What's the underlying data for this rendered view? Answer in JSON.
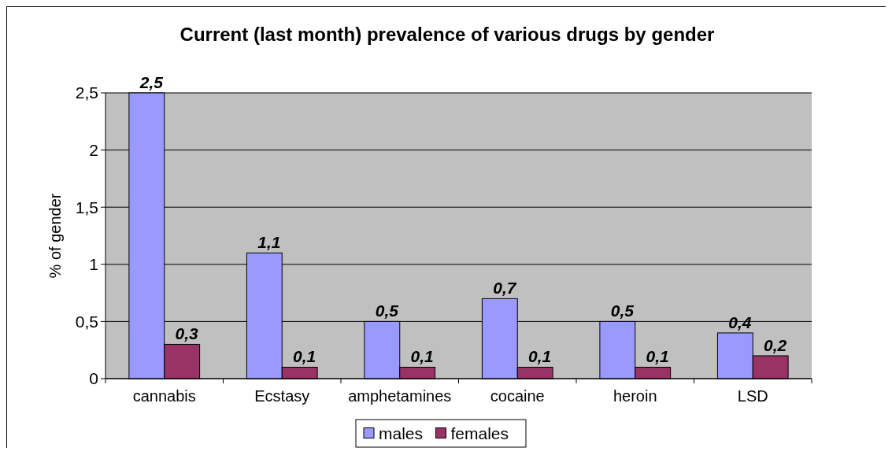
{
  "chart_data": {
    "type": "bar",
    "title": "Current (last month) prevalence of various drugs by gender",
    "ylabel": "% of gender",
    "categories": [
      "cannabis",
      "Ecstasy",
      "amphetamines",
      "cocaine",
      "heroin",
      "LSD"
    ],
    "series": [
      {
        "name": "males",
        "color": "#9999ff",
        "values": [
          2.5,
          1.1,
          0.5,
          0.7,
          0.5,
          0.4
        ],
        "value_labels": [
          "2,5",
          "1,1",
          "0,5",
          "0,7",
          "0,5",
          "0,4"
        ]
      },
      {
        "name": "females",
        "color": "#993366",
        "values": [
          0.3,
          0.1,
          0.1,
          0.1,
          0.1,
          0.2
        ],
        "value_labels": [
          "0,3",
          "0,1",
          "0,1",
          "0,1",
          "0,1",
          "0,2"
        ]
      }
    ],
    "ylim": [
      0,
      2.5
    ],
    "yticks": [
      0,
      {
        "value": 0.5,
        "label": "0,5"
      },
      1,
      {
        "value": 1.5,
        "label": "1,5"
      },
      2,
      {
        "value": 2.5,
        "label": "2,5"
      }
    ],
    "grid": "y",
    "legend": "bottom"
  }
}
